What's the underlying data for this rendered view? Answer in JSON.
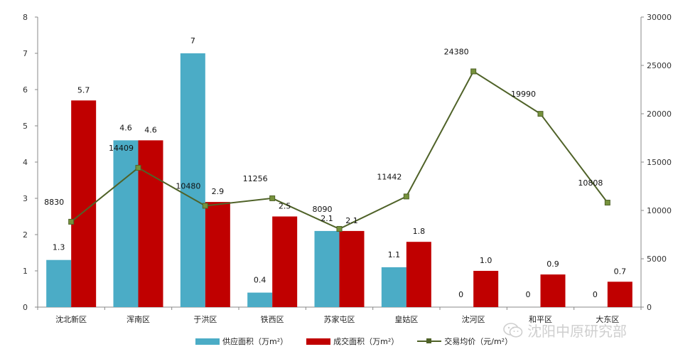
{
  "chart_data": {
    "type": "bar",
    "categories": [
      "沈北新区",
      "浑南区",
      "于洪区",
      "铁西区",
      "苏家屯区",
      "皇姑区",
      "沈河区",
      "和平区",
      "大东区"
    ],
    "series": [
      {
        "name": "供应面积（万m²）",
        "type": "bar",
        "axis": "left",
        "color": "#4BACC6",
        "values": [
          1.3,
          4.6,
          7,
          0.4,
          2.1,
          1.1,
          0,
          0,
          0
        ],
        "labels": [
          "1.3",
          "4.6",
          "7",
          "0.4",
          "2.1",
          "1.1",
          "0",
          "0",
          "0"
        ]
      },
      {
        "name": "成交面积（万m²）",
        "type": "bar",
        "axis": "left",
        "color": "#C00000",
        "values": [
          5.7,
          4.6,
          2.9,
          2.5,
          2.1,
          1.8,
          1.0,
          0.9,
          0.7
        ],
        "labels": [
          "5.7",
          "4.6",
          "2.9",
          "2.5",
          "2.1",
          "1.8",
          "1.0",
          "0.9",
          "0.7"
        ]
      },
      {
        "name": "交易均价（元/m²）",
        "type": "line",
        "axis": "right",
        "color": "#4F6228",
        "values": [
          8830,
          14409,
          10480,
          11256,
          8090,
          11442,
          24380,
          19990,
          10808
        ],
        "labels": [
          "8830",
          "14409",
          "10480",
          "11256",
          "8090",
          "11442",
          "24380",
          "19990",
          "10808"
        ]
      }
    ],
    "y_left": {
      "min": 0,
      "max": 8,
      "step": 1,
      "ticks": [
        "0",
        "1",
        "2",
        "3",
        "4",
        "5",
        "6",
        "7",
        "8"
      ]
    },
    "y_right": {
      "min": 0,
      "max": 30000,
      "step": 5000,
      "ticks": [
        "0",
        "5000",
        "10000",
        "15000",
        "20000",
        "25000",
        "30000"
      ]
    },
    "title": "",
    "xlabel": "",
    "ylabel": "",
    "grid": false,
    "legend_position": "bottom"
  },
  "legend": {
    "supply": "供应面积（万m²）",
    "deal": "成交面积（万m²）",
    "price": "交易均价（元/m²）"
  },
  "watermark": {
    "text": "沈阳中原研究部",
    "icon": "wechat-icon"
  }
}
